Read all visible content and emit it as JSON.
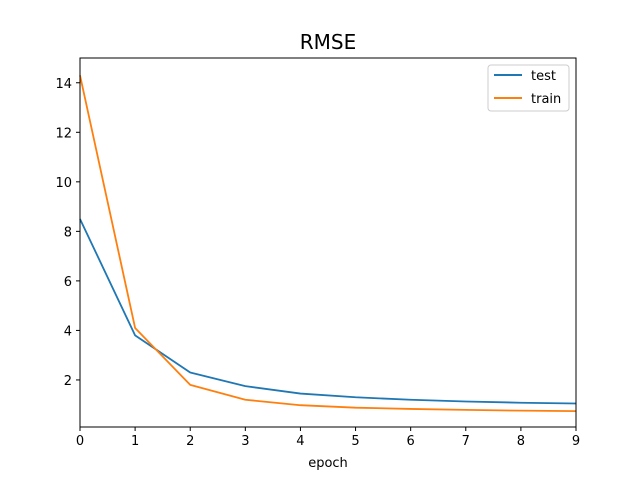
{
  "chart_data": {
    "type": "line",
    "title": "RMSE",
    "xlabel": "epoch",
    "ylabel": "",
    "xlim": [
      0,
      9
    ],
    "ylim": [
      0.1,
      15
    ],
    "x": [
      0,
      1,
      2,
      3,
      4,
      5,
      6,
      7,
      8,
      9
    ],
    "xticks": [
      0,
      1,
      2,
      3,
      4,
      5,
      6,
      7,
      8,
      9
    ],
    "yticks": [
      2,
      4,
      6,
      8,
      10,
      12,
      14
    ],
    "grid": false,
    "legend_position": "top-right",
    "series": [
      {
        "name": "test",
        "color": "#1f77b4",
        "values": [
          8.5,
          3.8,
          2.3,
          1.75,
          1.45,
          1.3,
          1.2,
          1.13,
          1.08,
          1.05
        ]
      },
      {
        "name": "train",
        "color": "#ff7f0e",
        "values": [
          14.3,
          4.1,
          1.8,
          1.2,
          0.98,
          0.88,
          0.83,
          0.79,
          0.76,
          0.74
        ]
      }
    ]
  }
}
